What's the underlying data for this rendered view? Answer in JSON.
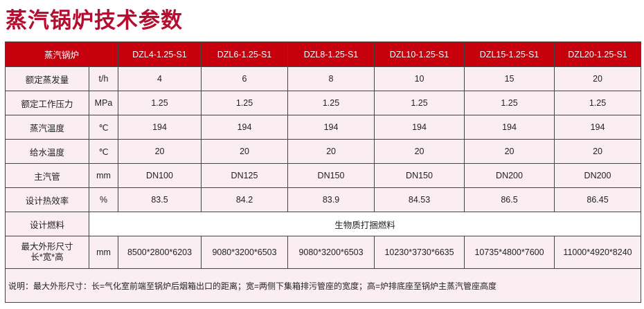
{
  "title": "蒸汽锅炉技术参数",
  "header": {
    "label": "蒸汽锅炉",
    "models": [
      "DZL4-1.25-S1",
      "DZL6-1.25-S1",
      "DZL8-1.25-S1",
      "DZL10-1.25-S1",
      "DZL15-1.25-S1",
      "DZL20-1.25-S1"
    ]
  },
  "rows": [
    {
      "label": "额定蒸发量",
      "unit": "t/h",
      "values": [
        "4",
        "6",
        "8",
        "10",
        "15",
        "20"
      ]
    },
    {
      "label": "额定工作压力",
      "unit": "MPa",
      "values": [
        "1.25",
        "1.25",
        "1.25",
        "1.25",
        "1.25",
        "1.25"
      ]
    },
    {
      "label": "蒸汽温度",
      "unit": "℃",
      "values": [
        "194",
        "194",
        "194",
        "194",
        "194",
        "194"
      ]
    },
    {
      "label": "给水温度",
      "unit": "℃",
      "values": [
        "20",
        "20",
        "20",
        "20",
        "20",
        "20"
      ]
    },
    {
      "label": "主汽管",
      "unit": "mm",
      "values": [
        "DN100",
        "DN125",
        "DN150",
        "DN150",
        "DN200",
        "DN200"
      ]
    },
    {
      "label": "设计热效率",
      "unit": "%",
      "values": [
        "83.5",
        "84.2",
        "83.9",
        "84.53",
        "86.5",
        "86.45"
      ]
    }
  ],
  "fuel": {
    "label": "设计燃料",
    "value": "生物质打捆燃料"
  },
  "dims": {
    "label1": "最大外形尺寸",
    "label2": "长*宽*高",
    "unit": "mm",
    "values": [
      "8500*2800*6203",
      "9080*3200*6503",
      "9080*3200*6503",
      "10230*3730*6635",
      "10735*4800*7600",
      "11000*4920*8240"
    ]
  },
  "note": "说明：最大外形尺寸：长=气化室前端至锅炉后烟箱出口的距离；宽=两侧下集箱排污管座的宽度；高=炉排底座至锅炉主蒸汽管座高度",
  "colors": {
    "header": "#c6000d",
    "title": "#b50d2f",
    "row": "#fbeef2"
  }
}
